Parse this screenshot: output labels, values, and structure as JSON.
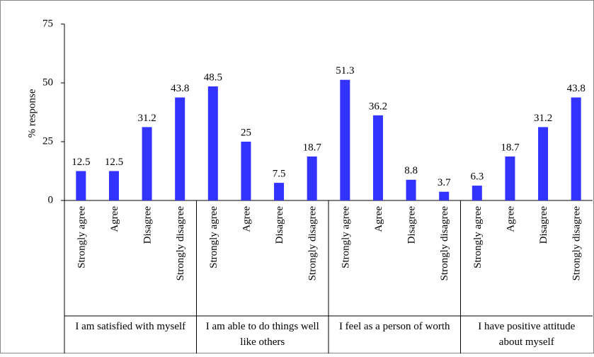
{
  "chart_data": {
    "type": "bar",
    "y_label": "% response",
    "color": "#3333ff",
    "ylim": [
      0,
      75
    ],
    "yticks": [
      0,
      25,
      50,
      75
    ],
    "groups": [
      {
        "name": "I am satisfied with myself",
        "categories": [
          "Strongly agree",
          "Agree",
          "Disagree",
          "Strongly disagree"
        ],
        "values": [
          12.5,
          12.5,
          31.2,
          43.8
        ]
      },
      {
        "name": "I am able to do things well like others",
        "categories": [
          "Strongly agree",
          "Agree",
          "Disagree",
          "Strongly disagree"
        ],
        "values": [
          48.5,
          25,
          7.5,
          18.7
        ]
      },
      {
        "name": "I feel as a person of worth",
        "categories": [
          "Strongly agree",
          "Agree",
          "Disagree",
          "Strongly disagree"
        ],
        "values": [
          51.3,
          36.2,
          8.8,
          3.7
        ]
      },
      {
        "name": "I have positive attitude about myself",
        "categories": [
          "Strongly agree",
          "Agree",
          "Disagree",
          "Strongly disagree"
        ],
        "values": [
          6.3,
          18.7,
          31.2,
          43.8
        ]
      }
    ]
  }
}
